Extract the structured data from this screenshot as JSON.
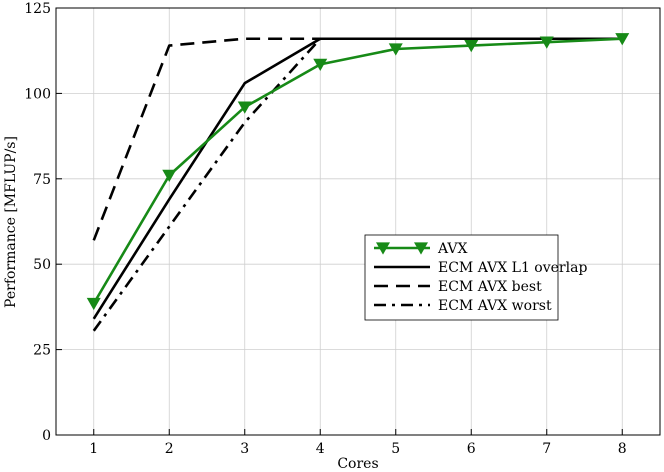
{
  "chart_data": {
    "type": "line",
    "title": "",
    "xlabel": "Cores",
    "ylabel": "Performance [MFLUP/s]",
    "xlim": [
      0.5,
      8.5
    ],
    "ylim": [
      0,
      125
    ],
    "xticks": [
      "1",
      "2",
      "3",
      "4",
      "5",
      "6",
      "7",
      "8"
    ],
    "yticks": [
      "0",
      "25",
      "50",
      "75",
      "100",
      "125"
    ],
    "grid": true,
    "legend_position": "center-right",
    "series": [
      {
        "name": "AVX",
        "color": "#178a17",
        "style": "solid-marker",
        "x": [
          1,
          2,
          3,
          4,
          5,
          6,
          7,
          8
        ],
        "values": [
          38.5,
          76,
          96,
          108.5,
          113,
          114,
          115,
          116
        ]
      },
      {
        "name": "ECM AVX L1 overlap",
        "color": "#000000",
        "style": "solid",
        "x": [
          1,
          2,
          3,
          4,
          5,
          6,
          7,
          8
        ],
        "values": [
          34,
          69,
          103,
          116,
          116,
          116,
          116,
          116
        ]
      },
      {
        "name": "ECM AVX best",
        "color": "#000000",
        "style": "dashed",
        "x": [
          1,
          2,
          3,
          4,
          5,
          6,
          7,
          8
        ],
        "values": [
          57,
          114,
          116,
          116,
          116,
          116,
          116,
          116
        ]
      },
      {
        "name": "ECM AVX worst",
        "color": "#000000",
        "style": "dashdot",
        "x": [
          1,
          2,
          3,
          4,
          5,
          6,
          7,
          8
        ],
        "values": [
          30.5,
          61,
          91.5,
          116,
          116,
          116,
          116,
          116
        ]
      }
    ]
  }
}
